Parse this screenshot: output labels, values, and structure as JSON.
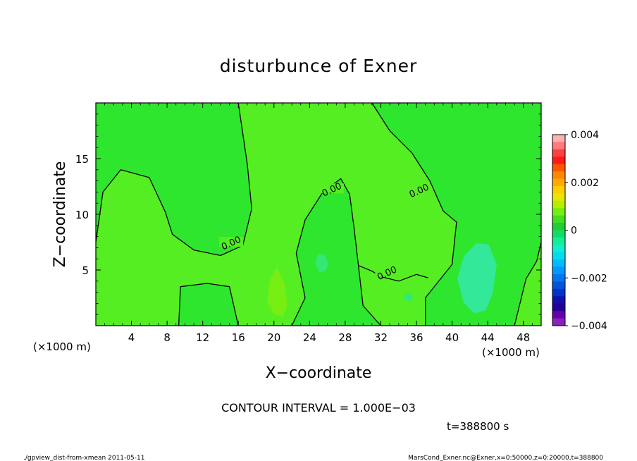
{
  "chart_data": {
    "type": "heatmap",
    "title": "disturbunce of Exner",
    "xlabel": "X−coordinate",
    "ylabel": "Z−coordinate",
    "x_unit": "(×1000 m)",
    "x_unit_right": "(×1000 m)",
    "xlim": [
      0,
      50
    ],
    "ylim": [
      0,
      20
    ],
    "x_ticks": [
      4,
      8,
      12,
      16,
      20,
      24,
      28,
      32,
      36,
      40,
      44,
      48
    ],
    "x_tick_labels": [
      "4",
      "8",
      "12",
      "16",
      "20",
      "24",
      "28",
      "32",
      "36",
      "40",
      "44",
      "48"
    ],
    "y_ticks": [
      5,
      10,
      15
    ],
    "y_tick_labels": [
      "5",
      "10",
      "15"
    ],
    "background_color": "#2fe62f",
    "field_regions": [
      {
        "level": "positive",
        "color": "#55ee22",
        "outline": [
          [
            0,
            7.5
          ],
          [
            0.8,
            12
          ],
          [
            2.8,
            14
          ],
          [
            6,
            13.3
          ],
          [
            7.8,
            10.2
          ],
          [
            8.6,
            8.2
          ],
          [
            11,
            6.8
          ],
          [
            14,
            6.3
          ],
          [
            16.5,
            7.2
          ],
          [
            17.5,
            10.5
          ],
          [
            17,
            14.5
          ],
          [
            16,
            20
          ],
          [
            31,
            20
          ],
          [
            33,
            17.5
          ],
          [
            35.5,
            15.5
          ],
          [
            37.5,
            13
          ],
          [
            39,
            10.3
          ],
          [
            40.5,
            9.3
          ],
          [
            40,
            5.5
          ],
          [
            37,
            2.5
          ],
          [
            37,
            0
          ],
          [
            32,
            0
          ],
          [
            30,
            1.8
          ],
          [
            29,
            8.7
          ],
          [
            28.5,
            11.8
          ],
          [
            27.5,
            13.2
          ],
          [
            25.5,
            12
          ],
          [
            23.5,
            9.5
          ],
          [
            22.5,
            6.5
          ],
          [
            23.5,
            2.5
          ],
          [
            22,
            0
          ],
          [
            16,
            0
          ],
          [
            15,
            3.5
          ],
          [
            12.5,
            3.8
          ],
          [
            9.5,
            3.5
          ],
          [
            9.3,
            0
          ],
          [
            0,
            0
          ]
        ]
      },
      {
        "level": "positive",
        "color": "#55ee22",
        "outline": [
          [
            47,
            0
          ],
          [
            48.3,
            4.2
          ],
          [
            49.5,
            5.8
          ],
          [
            50,
            7.5
          ],
          [
            50,
            0
          ]
        ]
      },
      {
        "level": "positive",
        "color": "#77ee11",
        "outline": [
          [
            19.2,
            2.2
          ],
          [
            19.6,
            4.2
          ],
          [
            20.3,
            5.2
          ],
          [
            21.2,
            3.8
          ],
          [
            21.5,
            1.8
          ],
          [
            21,
            0.8
          ],
          [
            20,
            1.0
          ]
        ]
      },
      {
        "level": "negative",
        "color": "#33e899",
        "outline": [
          [
            40.6,
            4.2
          ],
          [
            41.3,
            6.2
          ],
          [
            42.7,
            7.4
          ],
          [
            44.1,
            7.3
          ],
          [
            45,
            5.5
          ],
          [
            44.6,
            3
          ],
          [
            43.8,
            1.4
          ],
          [
            42.5,
            1.1
          ],
          [
            41.3,
            2.1
          ]
        ]
      },
      {
        "level": "negative",
        "color": "#33e877",
        "outline": [
          [
            24.6,
            5.6
          ],
          [
            25,
            6.4
          ],
          [
            25.7,
            6.4
          ],
          [
            26.1,
            5.5
          ],
          [
            25.8,
            4.9
          ],
          [
            25.1,
            4.8
          ]
        ]
      },
      {
        "level": "negative",
        "color": "#33e877",
        "outline": [
          [
            34.6,
            2.4
          ],
          [
            34.8,
            2.9
          ],
          [
            35.4,
            2.9
          ],
          [
            35.6,
            2.4
          ],
          [
            35.2,
            2.1
          ]
        ]
      }
    ],
    "contours": [
      {
        "level": 0.0,
        "label": "0.00",
        "points": [
          [
            0,
            7.5
          ],
          [
            0.8,
            12
          ],
          [
            2.8,
            14
          ],
          [
            6,
            13.3
          ],
          [
            7.8,
            10.2
          ],
          [
            8.6,
            8.2
          ],
          [
            11,
            6.8
          ],
          [
            14,
            6.3
          ],
          [
            16.5,
            7.2
          ],
          [
            17.5,
            10.5
          ],
          [
            17,
            14.5
          ],
          [
            16,
            20
          ]
        ]
      },
      {
        "level": 0.0,
        "label": "0.00",
        "points": [
          [
            31,
            20
          ],
          [
            33,
            17.5
          ],
          [
            35.5,
            15.5
          ],
          [
            37.5,
            13
          ],
          [
            39,
            10.3
          ],
          [
            40.5,
            9.3
          ],
          [
            40,
            5.5
          ],
          [
            37,
            2.5
          ],
          [
            37,
            0
          ]
        ]
      },
      {
        "level": 0.0,
        "label": "0.00",
        "points": [
          [
            32,
            0
          ],
          [
            30,
            1.8
          ],
          [
            29,
            8.7
          ],
          [
            28.5,
            11.8
          ],
          [
            27.5,
            13.2
          ],
          [
            25.5,
            12
          ],
          [
            23.5,
            9.5
          ],
          [
            22.5,
            6.5
          ],
          [
            23.5,
            2.5
          ],
          [
            22,
            0
          ]
        ]
      },
      {
        "level": 0.0,
        "label": "0.00",
        "points": [
          [
            16,
            0
          ],
          [
            15,
            3.5
          ],
          [
            12.5,
            3.8
          ],
          [
            9.5,
            3.5
          ],
          [
            9.3,
            0
          ]
        ]
      },
      {
        "level": 0.0,
        "label": "0.00",
        "points": [
          [
            47,
            0
          ],
          [
            48.3,
            4.2
          ],
          [
            49.5,
            5.8
          ],
          [
            50,
            7.5
          ]
        ]
      },
      {
        "level": 0.0,
        "label": "0.00",
        "points": [
          [
            29.5,
            5.4
          ],
          [
            31,
            4.9
          ],
          [
            32,
            4.4
          ],
          [
            34,
            4.0
          ],
          [
            36,
            4.6
          ],
          [
            37.3,
            4.3
          ]
        ]
      }
    ],
    "contour_labels": [
      {
        "text": "0.00",
        "x": 15.2,
        "y": 7.4
      },
      {
        "text": "0.00",
        "x": 26.5,
        "y": 12.2
      },
      {
        "text": "0.00",
        "x": 36.3,
        "y": 12.1
      },
      {
        "text": "0.00",
        "x": 32.7,
        "y": 4.7
      }
    ],
    "colorbar": {
      "min": -0.004,
      "max": 0.004,
      "tick_values": [
        0.004,
        0.002,
        0,
        -0.002,
        -0.004
      ],
      "tick_labels": [
        "0.004",
        "0.002",
        "0",
        "−0.002",
        "−0.004"
      ],
      "colors": [
        "#ffb0b0",
        "#ff7a7a",
        "#ff4040",
        "#ff1a1a",
        "#ff5500",
        "#ff8800",
        "#ffaa00",
        "#ffcc00",
        "#e6e600",
        "#b5ee00",
        "#77ee11",
        "#44dd22",
        "#22cc33",
        "#11dd66",
        "#11ee99",
        "#11eecc",
        "#00ddee",
        "#00bbff",
        "#0099ff",
        "#0077ee",
        "#0055dd",
        "#0033cc",
        "#1111aa",
        "#220099",
        "#6600aa",
        "#8822bb"
      ]
    }
  },
  "annotations": {
    "contour_interval": "CONTOUR INTERVAL = 1.000E−03",
    "time": "t=388800 s",
    "footer_left": "./gpview_dist-from-xmean  2011-05-11",
    "footer_right": "MarsCond_Exner.nc@Exner,x=0:50000,z=0:20000,t=388800"
  }
}
